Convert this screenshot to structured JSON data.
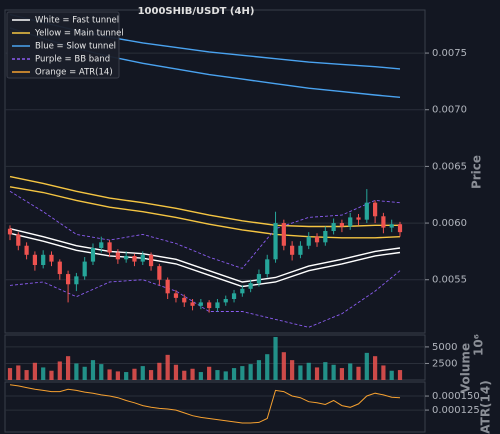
{
  "chart_data": {
    "type": "candlestick",
    "title": "1000SHIB/USDT (4H)",
    "ylabel": "Price",
    "ylim": [
      0.00503,
      0.00788
    ],
    "yticks": [
      0.0055,
      {
        "value": 0.006,
        "label": "0.0060"
      },
      0.0065,
      {
        "value": 0.007,
        "label": "0.0070"
      },
      0.0075
    ],
    "grid": true,
    "legend": "upper left",
    "up_color": "#26a69a",
    "down_color": "#ef5350",
    "open": [
      0.00595,
      0.0059,
      0.0058,
      0.00572,
      0.00563,
      0.00572,
      0.00566,
      0.00555,
      0.00546,
      0.00553,
      0.00566,
      0.00578,
      0.00583,
      0.00574,
      0.00568,
      0.00571,
      0.00566,
      0.00572,
      0.00562,
      0.0055,
      0.00538,
      0.00534,
      0.0053,
      0.00527,
      0.0053,
      0.00525,
      0.0053,
      0.00533,
      0.00538,
      0.00542,
      0.00547,
      0.00555,
      0.00568,
      0.006,
      0.0058,
      0.00572,
      0.0058,
      0.00588,
      0.00583,
      0.00593,
      0.006,
      0.00597,
      0.00605,
      0.00603,
      0.00618,
      0.00606,
      0.00596,
      0.00599
    ],
    "high": [
      0.00598,
      0.00592,
      0.00583,
      0.00575,
      0.00576,
      0.00575,
      0.00568,
      0.00558,
      0.00556,
      0.0057,
      0.00582,
      0.00588,
      0.00585,
      0.00577,
      0.00575,
      0.00573,
      0.00575,
      0.00574,
      0.00564,
      0.00552,
      0.00541,
      0.00537,
      0.00533,
      0.00533,
      0.00532,
      0.00533,
      0.00536,
      0.00541,
      0.00545,
      0.0055,
      0.00559,
      0.00572,
      0.0061,
      0.00603,
      0.00584,
      0.00584,
      0.00592,
      0.00591,
      0.00597,
      0.00604,
      0.00603,
      0.00609,
      0.00608,
      0.0063,
      0.0062,
      0.00609,
      0.00603,
      0.00601
    ],
    "low": [
      0.00585,
      0.00576,
      0.00568,
      0.00558,
      0.0056,
      0.00562,
      0.0055,
      0.0053,
      0.0054,
      0.0055,
      0.00563,
      0.00574,
      0.0057,
      0.00564,
      0.00565,
      0.00562,
      0.00563,
      0.00558,
      0.00545,
      0.00533,
      0.0053,
      0.00526,
      0.00523,
      0.00524,
      0.00521,
      0.00522,
      0.00527,
      0.0053,
      0.00535,
      0.00539,
      0.00544,
      0.00552,
      0.00565,
      0.00576,
      0.00567,
      0.00569,
      0.00577,
      0.00579,
      0.0058,
      0.0059,
      0.00592,
      0.00594,
      0.00598,
      0.006,
      0.006,
      0.00591,
      0.00592,
      0.00588
    ],
    "close": [
      0.0059,
      0.0058,
      0.00572,
      0.00563,
      0.00572,
      0.00566,
      0.00555,
      0.00546,
      0.00553,
      0.00566,
      0.00578,
      0.00583,
      0.00574,
      0.00568,
      0.00571,
      0.00566,
      0.00572,
      0.00562,
      0.0055,
      0.00538,
      0.00534,
      0.0053,
      0.00527,
      0.0053,
      0.00525,
      0.0053,
      0.00533,
      0.00538,
      0.00542,
      0.00547,
      0.00555,
      0.00568,
      0.006,
      0.0058,
      0.00572,
      0.0058,
      0.00588,
      0.00583,
      0.00593,
      0.006,
      0.00597,
      0.00605,
      0.00603,
      0.00618,
      0.00606,
      0.00596,
      0.00599,
      0.00592
    ],
    "line_x": [
      0,
      4,
      8,
      12,
      16,
      20,
      24,
      28,
      32,
      36,
      40,
      44,
      47
    ],
    "lines": [
      {
        "name": "White = Fast tunnel",
        "color": "#ffffff",
        "dashed": false,
        "upper": [
          0.00595,
          0.00588,
          0.0058,
          0.00575,
          0.00573,
          0.00568,
          0.00558,
          0.00548,
          0.00552,
          0.00562,
          0.00568,
          0.00575,
          0.00578
        ],
        "lower": [
          0.00591,
          0.00584,
          0.00576,
          0.00571,
          0.00569,
          0.00564,
          0.00554,
          0.00544,
          0.00548,
          0.00558,
          0.00564,
          0.00571,
          0.00574
        ]
      },
      {
        "name": "Yellow = Main tunnel",
        "color": "#f5c542",
        "dashed": false,
        "upper": [
          0.00641,
          0.00635,
          0.00628,
          0.00622,
          0.00618,
          0.00613,
          0.00607,
          0.00602,
          0.00598,
          0.00597,
          0.00597,
          0.00598,
          0.00598
        ],
        "lower": [
          0.00632,
          0.00627,
          0.0062,
          0.00614,
          0.0061,
          0.00605,
          0.00599,
          0.00594,
          0.0059,
          0.00588,
          0.00587,
          0.00587,
          0.00588
        ]
      },
      {
        "name": "Blue = Slow tunnel",
        "color": "#4aa3f0",
        "dashed": false,
        "upper": [
          0.00784,
          0.00777,
          0.0077,
          0.00764,
          0.00759,
          0.00755,
          0.00751,
          0.00748,
          0.00745,
          0.00742,
          0.0074,
          0.00738,
          0.00736
        ],
        "lower": [
          0.00772,
          0.00763,
          0.00754,
          0.00747,
          0.00741,
          0.00736,
          0.00731,
          0.00727,
          0.00723,
          0.00719,
          0.00716,
          0.00713,
          0.00711
        ]
      },
      {
        "name": "Purple = BB band",
        "color": "#8a5cf0",
        "dashed": true,
        "upper": [
          0.00628,
          0.0061,
          0.0059,
          0.00585,
          0.0059,
          0.00582,
          0.0057,
          0.0056,
          0.00595,
          0.00605,
          0.00607,
          0.0062,
          0.00618
        ],
        "lower": [
          0.00545,
          0.00548,
          0.00535,
          0.00548,
          0.0055,
          0.0054,
          0.00522,
          0.00522,
          0.00515,
          0.00508,
          0.0052,
          0.0054,
          0.00558
        ]
      }
    ],
    "volume": {
      "ylabel": "Volume",
      "offset_label": "10⁶",
      "ylim": [
        0,
        6800
      ],
      "yticks": [
        2500,
        5000
      ],
      "values": [
        1800,
        2200,
        1500,
        2600,
        1900,
        1400,
        2800,
        3600,
        2500,
        2000,
        3000,
        2400,
        1600,
        1300,
        1200,
        1700,
        2100,
        1500,
        2600,
        3800,
        2300,
        1400,
        1700,
        1200,
        2000,
        1500,
        1300,
        1800,
        2100,
        2400,
        3000,
        3900,
        6500,
        4200,
        3000,
        2200,
        2600,
        1900,
        2700,
        2300,
        1800,
        2500,
        2000,
        4100,
        3600,
        2200,
        1400,
        1500
      ]
    },
    "atr": {
      "name": "Orange = ATR(14)",
      "ylabel": "ATR(14)",
      "color": "#f5a030",
      "ylim": [
        8.6e-05,
        0.000175
      ],
      "yticks": [
        0.000125,
        {
          "value": 0.00015,
          "label": "0.000150"
        }
      ],
      "values": [
        0.00017,
        0.000168,
        0.000165,
        0.000162,
        0.00016,
        0.000158,
        0.000158,
        0.000162,
        0.00016,
        0.000157,
        0.000155,
        0.000152,
        0.00015,
        0.000147,
        0.000142,
        0.000138,
        0.000133,
        0.00013,
        0.000128,
        0.000127,
        0.000125,
        0.00012,
        0.000115,
        0.000112,
        0.00011,
        0.000108,
        0.000106,
        0.000104,
        0.000102,
        0.000102,
        0.000103,
        0.00011,
        0.00016,
        0.000158,
        0.00015,
        0.000147,
        0.00014,
        0.000138,
        0.000135,
        0.000142,
        0.000133,
        0.00013,
        0.000136,
        0.00015,
        0.000155,
        0.000152,
        0.000148,
        0.000147
      ]
    }
  }
}
